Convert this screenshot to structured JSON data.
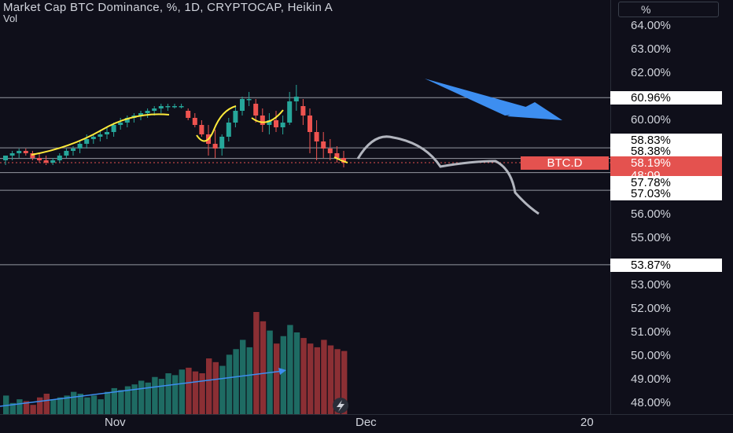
{
  "header": {
    "title": "Market Cap BTC Dominance, %, 1D, CRYPTOCAP, Heikin A",
    "volume_label": "Vol"
  },
  "price_axis": {
    "unit_label": "%",
    "ticks": [
      "64.00%",
      "63.00%",
      "62.00%",
      "60.00%",
      "56.00%",
      "55.00%",
      "53.00%",
      "52.00%",
      "51.00%",
      "50.00%",
      "49.00%",
      "48.00%"
    ]
  },
  "horizontal_levels": [
    "60.96%",
    "58.83%",
    "58.38%",
    "57.78%",
    "57.03%",
    "53.87%"
  ],
  "current_price": {
    "symbol": "BTC.D",
    "value": "58.19%",
    "countdown": "48:09"
  },
  "time_axis": {
    "labels": [
      "Nov",
      "Dec",
      "20"
    ]
  },
  "colors": {
    "up": "#26a69a",
    "down": "#ef5350",
    "vol_up": "#1e6b63",
    "vol_down": "#8b2f34",
    "arrow": "#3d8ef0",
    "projection": "#b2b5be",
    "curve": "#ffeb3b"
  },
  "icons": {
    "replay": "lightning-icon"
  },
  "chart_data": {
    "type": "candlestick",
    "ylabel": "%",
    "ylim": [
      47.7,
      64.6
    ],
    "series": [
      {
        "values": [
          [
            58.3,
            58.5,
            58.1,
            58.5
          ],
          [
            58.5,
            58.7,
            58.3,
            58.6
          ],
          [
            58.6,
            58.8,
            58.4,
            58.7
          ],
          [
            58.7,
            58.8,
            58.5,
            58.6
          ],
          [
            58.6,
            58.7,
            58.3,
            58.4
          ],
          [
            58.4,
            58.6,
            58.2,
            58.3
          ],
          [
            58.3,
            58.5,
            58.1,
            58.2
          ],
          [
            58.2,
            58.4,
            58.1,
            58.3
          ],
          [
            58.3,
            58.6,
            58.2,
            58.5
          ],
          [
            58.5,
            58.8,
            58.4,
            58.7
          ],
          [
            58.7,
            58.9,
            58.5,
            58.8
          ],
          [
            58.8,
            59.1,
            58.6,
            59.0
          ],
          [
            59.0,
            59.4,
            58.8,
            59.2
          ],
          [
            59.2,
            59.4,
            59.0,
            59.3
          ],
          [
            59.3,
            59.6,
            59.1,
            59.4
          ],
          [
            59.4,
            59.7,
            59.2,
            59.5
          ],
          [
            59.5,
            59.9,
            59.3,
            59.8
          ],
          [
            59.8,
            60.1,
            59.6,
            59.9
          ],
          [
            59.9,
            60.2,
            59.7,
            60.1
          ],
          [
            60.1,
            60.3,
            59.9,
            60.2
          ],
          [
            60.2,
            60.4,
            60.0,
            60.3
          ],
          [
            60.3,
            60.5,
            60.1,
            60.4
          ],
          [
            60.4,
            60.6,
            60.2,
            60.5
          ],
          [
            60.5,
            60.7,
            60.3,
            60.6
          ],
          [
            60.6,
            60.7,
            60.4,
            60.6
          ],
          [
            60.6,
            60.7,
            60.5,
            60.6
          ],
          [
            60.6,
            60.7,
            60.5,
            60.6
          ],
          [
            60.4,
            60.5,
            60.0,
            60.1
          ],
          [
            60.1,
            60.3,
            59.7,
            59.8
          ],
          [
            59.8,
            60.0,
            59.3,
            59.4
          ],
          [
            59.4,
            59.8,
            58.5,
            59.0
          ],
          [
            59.0,
            59.6,
            58.4,
            58.8
          ],
          [
            58.8,
            59.4,
            58.5,
            59.3
          ],
          [
            59.3,
            60.1,
            59.1,
            59.9
          ],
          [
            59.9,
            60.6,
            59.7,
            60.4
          ],
          [
            60.4,
            61.0,
            60.2,
            60.9
          ],
          [
            60.9,
            61.2,
            60.6,
            60.9
          ],
          [
            60.7,
            60.9,
            59.9,
            60.2
          ],
          [
            60.2,
            60.5,
            59.5,
            59.8
          ],
          [
            59.8,
            60.3,
            59.4,
            60.0
          ],
          [
            60.0,
            60.4,
            59.5,
            59.7
          ],
          [
            59.7,
            60.2,
            59.4,
            59.9
          ],
          [
            59.9,
            61.2,
            59.8,
            60.8
          ],
          [
            60.8,
            61.5,
            60.4,
            61.0
          ],
          [
            60.6,
            60.9,
            59.8,
            60.2
          ],
          [
            60.2,
            60.5,
            58.6,
            59.5
          ],
          [
            59.5,
            60.0,
            58.3,
            59.1
          ],
          [
            59.1,
            59.5,
            58.4,
            58.8
          ],
          [
            58.8,
            59.2,
            58.3,
            58.6
          ],
          [
            58.6,
            58.9,
            58.2,
            58.4
          ],
          [
            58.4,
            58.7,
            58.0,
            58.2
          ]
        ]
      }
    ],
    "volume": [
      10,
      6,
      8,
      7,
      5,
      9,
      11,
      8,
      9,
      10,
      12,
      11,
      9,
      10,
      8,
      12,
      14,
      13,
      15,
      16,
      18,
      17,
      20,
      19,
      22,
      21,
      24,
      25,
      23,
      22,
      30,
      28,
      26,
      32,
      35,
      40,
      36,
      55,
      50,
      45,
      38,
      42,
      48,
      44,
      41,
      38,
      36,
      40,
      37,
      35,
      34
    ]
  }
}
